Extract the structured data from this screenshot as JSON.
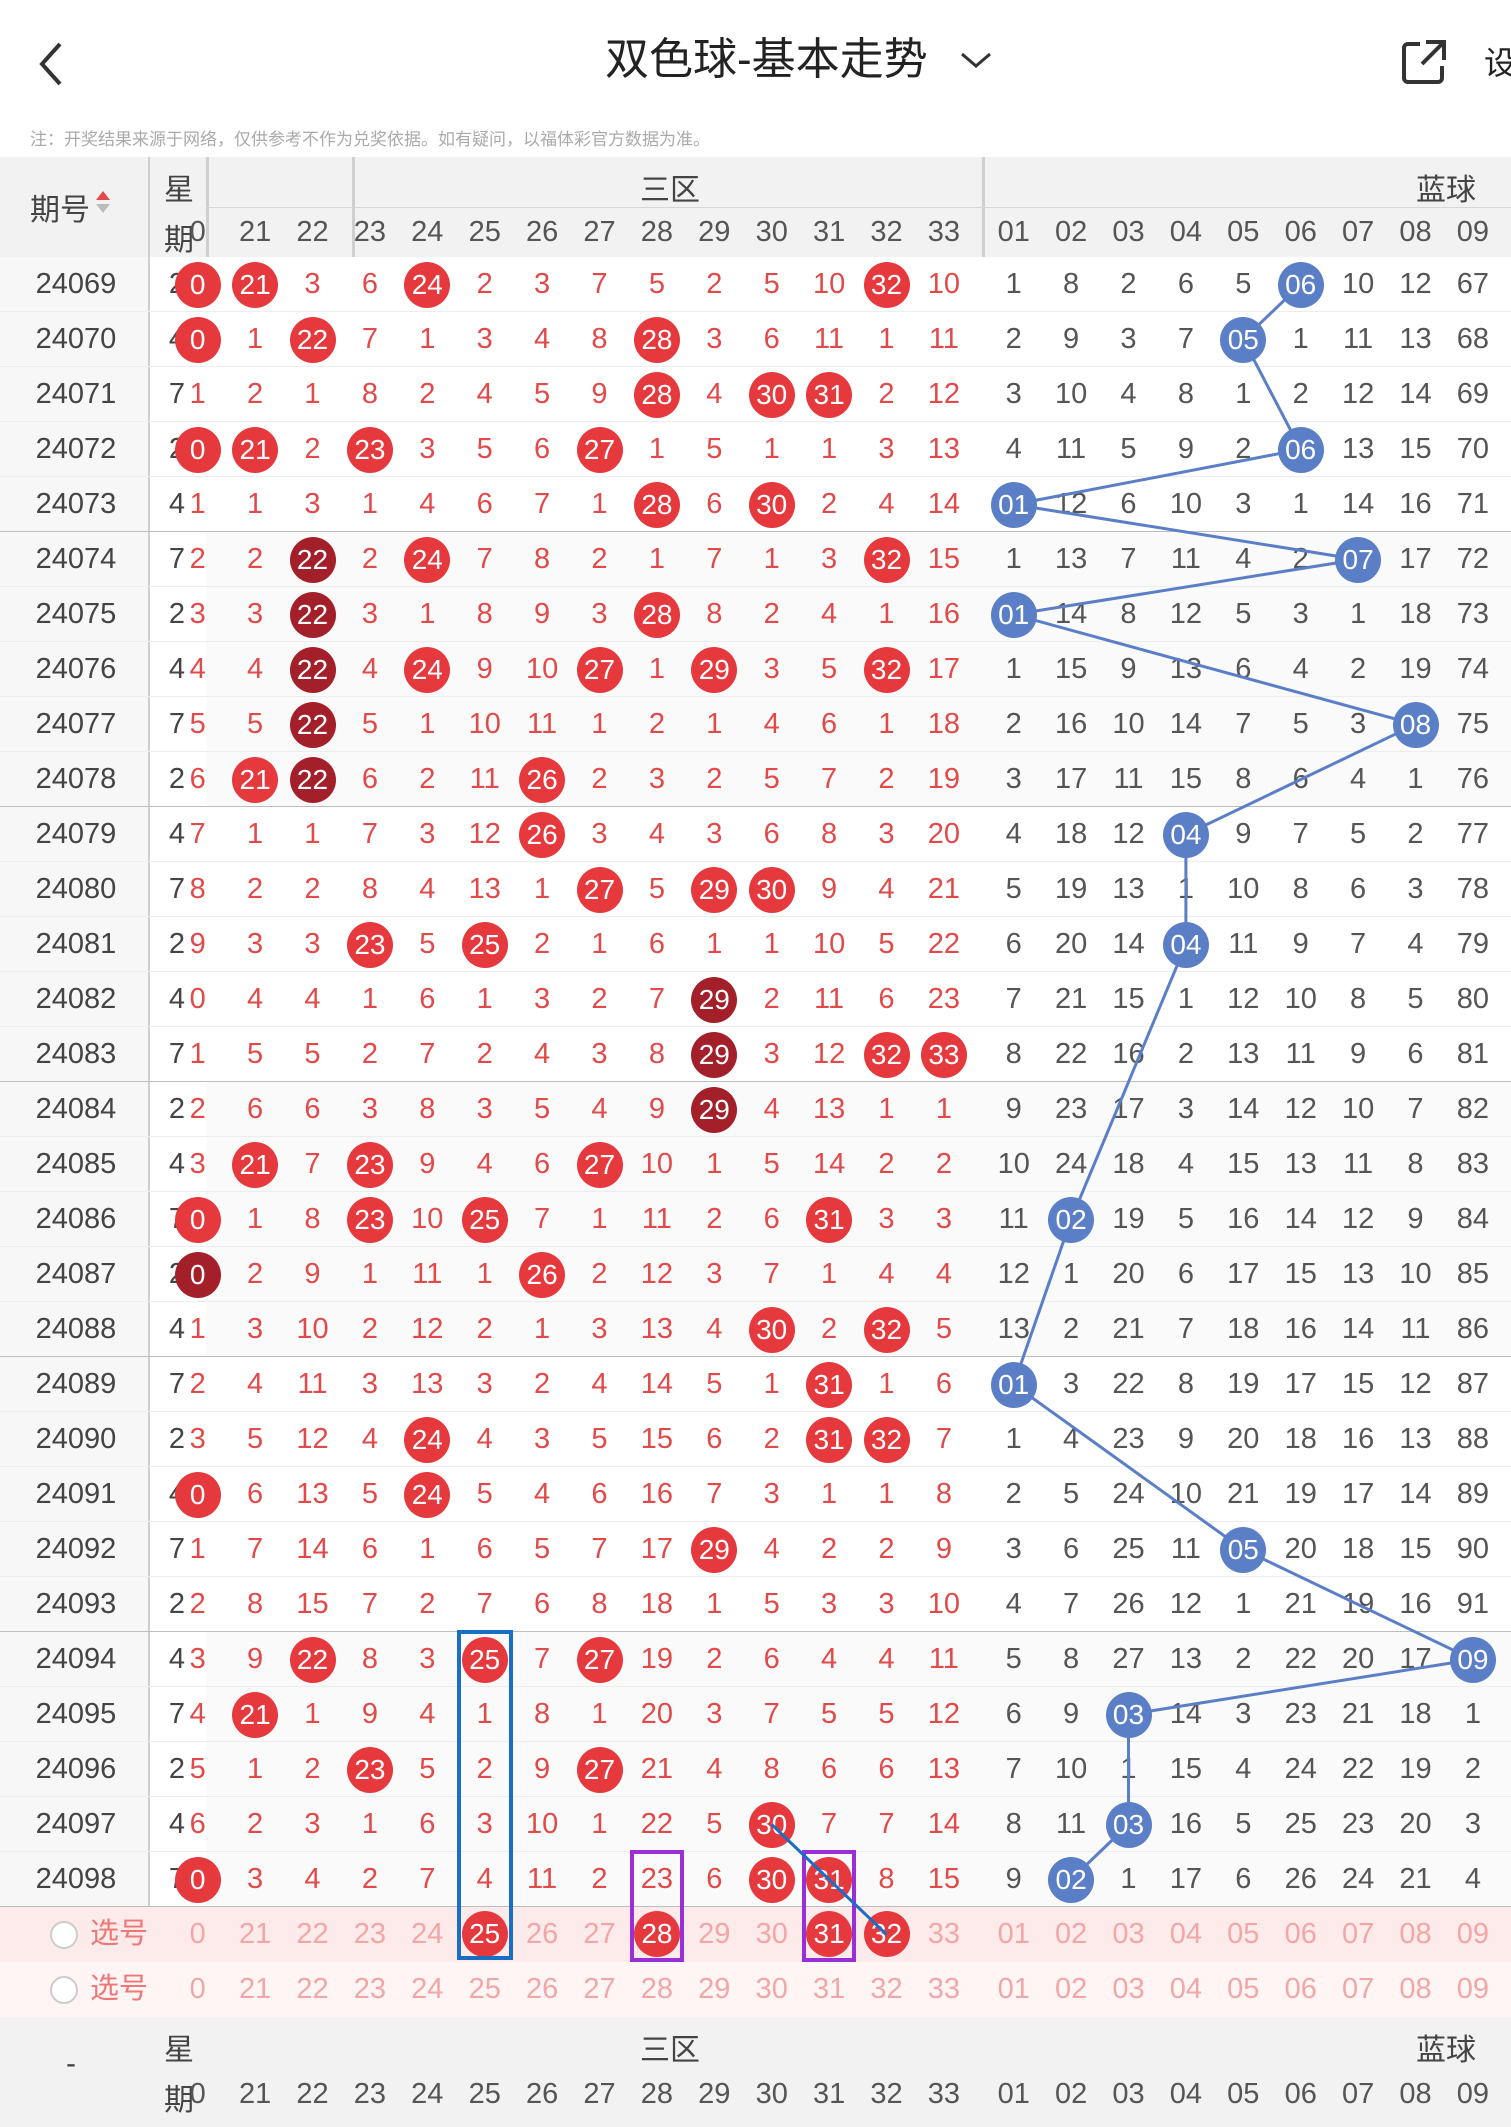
{
  "top_bar": {
    "title": "双色球-基本走势",
    "settings_label": "设",
    "notice": "注：开奖结果来源于网络，仅供参考不作为兑奖依据。如有疑问，以福体彩官方数据为准。"
  },
  "header": {
    "period_label": "期号",
    "weekday_label_top": "星",
    "weekday_label_bottom": "期",
    "zone_label": "三区",
    "blue_label": "蓝球",
    "red_columns": [
      "0",
      "21",
      "22",
      "23",
      "24",
      "25",
      "26",
      "27",
      "28",
      "29",
      "30",
      "31",
      "32",
      "33"
    ],
    "blue_columns": [
      "01",
      "02",
      "03",
      "04",
      "05",
      "06",
      "07",
      "08",
      "09"
    ]
  },
  "select_rows": [
    {
      "label": "选号"
    },
    {
      "label": "选号"
    }
  ],
  "footer": {
    "dash": "-",
    "weekday_label_top": "星",
    "weekday_label_bottom": "期",
    "zone_label": "三区",
    "blue_label": "蓝球"
  },
  "rows": [
    {
      "period": "24069",
      "weekday": "2",
      "red": [
        "0",
        "21",
        "3",
        "6",
        "24",
        "2",
        "3",
        "7",
        "5",
        "2",
        "5",
        "10",
        "32",
        "10"
      ],
      "red_hit": [
        1,
        1,
        0,
        0,
        1,
        0,
        0,
        0,
        0,
        0,
        0,
        0,
        1,
        0
      ],
      "blue": [
        "1",
        "8",
        "2",
        "6",
        "5",
        "06",
        "10",
        "12",
        "67"
      ],
      "blue_hit": 5
    },
    {
      "period": "24070",
      "weekday": "4",
      "red": [
        "0",
        "1",
        "22",
        "7",
        "1",
        "3",
        "4",
        "8",
        "28",
        "3",
        "6",
        "11",
        "1",
        "11"
      ],
      "red_hit": [
        1,
        0,
        1,
        0,
        0,
        0,
        0,
        0,
        1,
        0,
        0,
        0,
        0,
        0
      ],
      "blue": [
        "2",
        "9",
        "3",
        "7",
        "05",
        "1",
        "11",
        "13",
        "68"
      ],
      "blue_hit": 4
    },
    {
      "period": "24071",
      "weekday": "7",
      "red": [
        "1",
        "2",
        "1",
        "8",
        "2",
        "4",
        "5",
        "9",
        "28",
        "4",
        "30",
        "31",
        "2",
        "12"
      ],
      "red_hit": [
        0,
        0,
        0,
        0,
        0,
        0,
        0,
        0,
        1,
        0,
        1,
        1,
        0,
        0
      ],
      "blue": [
        "3",
        "10",
        "4",
        "8",
        "1",
        "2",
        "12",
        "14",
        "69"
      ],
      "blue_hit": -1
    },
    {
      "period": "24072",
      "weekday": "2",
      "red": [
        "0",
        "21",
        "2",
        "23",
        "3",
        "5",
        "6",
        "27",
        "1",
        "5",
        "1",
        "1",
        "3",
        "13"
      ],
      "red_hit": [
        1,
        1,
        0,
        1,
        0,
        0,
        0,
        1,
        0,
        0,
        0,
        0,
        0,
        0
      ],
      "blue": [
        "4",
        "11",
        "5",
        "9",
        "2",
        "06",
        "13",
        "15",
        "70"
      ],
      "blue_hit": 5
    },
    {
      "period": "24073",
      "weekday": "4",
      "red": [
        "1",
        "1",
        "3",
        "1",
        "4",
        "6",
        "7",
        "1",
        "28",
        "6",
        "30",
        "2",
        "4",
        "14"
      ],
      "red_hit": [
        0,
        0,
        0,
        0,
        0,
        0,
        0,
        0,
        1,
        0,
        1,
        0,
        0,
        0
      ],
      "blue": [
        "01",
        "12",
        "6",
        "10",
        "3",
        "1",
        "14",
        "16",
        "71"
      ],
      "blue_hit": 0
    },
    {
      "period": "24074",
      "weekday": "7",
      "red": [
        "2",
        "2",
        "22",
        "2",
        "24",
        "7",
        "8",
        "2",
        "1",
        "7",
        "1",
        "3",
        "32",
        "15"
      ],
      "red_hit": [
        0,
        0,
        2,
        0,
        1,
        0,
        0,
        0,
        0,
        0,
        0,
        0,
        1,
        0
      ],
      "blue": [
        "1",
        "13",
        "7",
        "11",
        "4",
        "2",
        "07",
        "17",
        "72"
      ],
      "blue_hit": 6
    },
    {
      "period": "24075",
      "weekday": "2",
      "red": [
        "3",
        "3",
        "22",
        "3",
        "1",
        "8",
        "9",
        "3",
        "28",
        "8",
        "2",
        "4",
        "1",
        "16"
      ],
      "red_hit": [
        0,
        0,
        2,
        0,
        0,
        0,
        0,
        0,
        1,
        0,
        0,
        0,
        0,
        0
      ],
      "blue": [
        "01",
        "14",
        "8",
        "12",
        "5",
        "3",
        "1",
        "18",
        "73"
      ],
      "blue_hit": 0
    },
    {
      "period": "24076",
      "weekday": "4",
      "red": [
        "4",
        "4",
        "22",
        "4",
        "24",
        "9",
        "10",
        "27",
        "1",
        "29",
        "3",
        "5",
        "32",
        "17"
      ],
      "red_hit": [
        0,
        0,
        2,
        0,
        1,
        0,
        0,
        1,
        0,
        1,
        0,
        0,
        1,
        0
      ],
      "blue": [
        "1",
        "15",
        "9",
        "13",
        "6",
        "4",
        "2",
        "19",
        "74"
      ],
      "blue_hit": -1
    },
    {
      "period": "24077",
      "weekday": "7",
      "red": [
        "5",
        "5",
        "22",
        "5",
        "1",
        "10",
        "11",
        "1",
        "2",
        "1",
        "4",
        "6",
        "1",
        "18"
      ],
      "red_hit": [
        0,
        0,
        2,
        0,
        0,
        0,
        0,
        0,
        0,
        0,
        0,
        0,
        0,
        0
      ],
      "blue": [
        "2",
        "16",
        "10",
        "14",
        "7",
        "5",
        "3",
        "08",
        "75"
      ],
      "blue_hit": 7
    },
    {
      "period": "24078",
      "weekday": "2",
      "red": [
        "6",
        "21",
        "22",
        "6",
        "2",
        "11",
        "26",
        "2",
        "3",
        "2",
        "5",
        "7",
        "2",
        "19"
      ],
      "red_hit": [
        0,
        1,
        2,
        0,
        0,
        0,
        1,
        0,
        0,
        0,
        0,
        0,
        0,
        0
      ],
      "blue": [
        "3",
        "17",
        "11",
        "15",
        "8",
        "6",
        "4",
        "1",
        "76"
      ],
      "blue_hit": -1
    },
    {
      "period": "24079",
      "weekday": "4",
      "red": [
        "7",
        "1",
        "1",
        "7",
        "3",
        "12",
        "26",
        "3",
        "4",
        "3",
        "6",
        "8",
        "3",
        "20"
      ],
      "red_hit": [
        0,
        0,
        0,
        0,
        0,
        0,
        1,
        0,
        0,
        0,
        0,
        0,
        0,
        0
      ],
      "blue": [
        "4",
        "18",
        "12",
        "04",
        "9",
        "7",
        "5",
        "2",
        "77"
      ],
      "blue_hit": 3
    },
    {
      "period": "24080",
      "weekday": "7",
      "red": [
        "8",
        "2",
        "2",
        "8",
        "4",
        "13",
        "1",
        "27",
        "5",
        "29",
        "30",
        "9",
        "4",
        "21"
      ],
      "red_hit": [
        0,
        0,
        0,
        0,
        0,
        0,
        0,
        1,
        0,
        1,
        1,
        0,
        0,
        0
      ],
      "blue": [
        "5",
        "19",
        "13",
        "1",
        "10",
        "8",
        "6",
        "3",
        "78"
      ],
      "blue_hit": -1
    },
    {
      "period": "24081",
      "weekday": "2",
      "red": [
        "9",
        "3",
        "3",
        "23",
        "5",
        "25",
        "2",
        "1",
        "6",
        "1",
        "1",
        "10",
        "5",
        "22"
      ],
      "red_hit": [
        0,
        0,
        0,
        1,
        0,
        1,
        0,
        0,
        0,
        0,
        0,
        0,
        0,
        0
      ],
      "blue": [
        "6",
        "20",
        "14",
        "04",
        "11",
        "9",
        "7",
        "4",
        "79"
      ],
      "blue_hit": 3
    },
    {
      "period": "24082",
      "weekday": "4",
      "red": [
        "0",
        "4",
        "4",
        "1",
        "6",
        "1",
        "3",
        "2",
        "7",
        "29",
        "2",
        "11",
        "6",
        "23"
      ],
      "red_hit": [
        0,
        0,
        0,
        0,
        0,
        0,
        0,
        0,
        0,
        2,
        0,
        0,
        0,
        0
      ],
      "blue": [
        "7",
        "21",
        "15",
        "1",
        "12",
        "10",
        "8",
        "5",
        "80"
      ],
      "blue_hit": -1
    },
    {
      "period": "24083",
      "weekday": "7",
      "red": [
        "1",
        "5",
        "5",
        "2",
        "7",
        "2",
        "4",
        "3",
        "8",
        "29",
        "3",
        "12",
        "32",
        "33"
      ],
      "red_hit": [
        0,
        0,
        0,
        0,
        0,
        0,
        0,
        0,
        0,
        2,
        0,
        0,
        1,
        1
      ],
      "blue": [
        "8",
        "22",
        "16",
        "2",
        "13",
        "11",
        "9",
        "6",
        "81"
      ],
      "blue_hit": -1
    },
    {
      "period": "24084",
      "weekday": "2",
      "red": [
        "2",
        "6",
        "6",
        "3",
        "8",
        "3",
        "5",
        "4",
        "9",
        "29",
        "4",
        "13",
        "1",
        "1"
      ],
      "red_hit": [
        0,
        0,
        0,
        0,
        0,
        0,
        0,
        0,
        0,
        2,
        0,
        0,
        0,
        0
      ],
      "blue": [
        "9",
        "23",
        "17",
        "3",
        "14",
        "12",
        "10",
        "7",
        "82"
      ],
      "blue_hit": -1
    },
    {
      "period": "24085",
      "weekday": "4",
      "red": [
        "3",
        "21",
        "7",
        "23",
        "9",
        "4",
        "6",
        "27",
        "10",
        "1",
        "5",
        "14",
        "2",
        "2"
      ],
      "red_hit": [
        0,
        1,
        0,
        1,
        0,
        0,
        0,
        1,
        0,
        0,
        0,
        0,
        0,
        0
      ],
      "blue": [
        "10",
        "24",
        "18",
        "4",
        "15",
        "13",
        "11",
        "8",
        "83"
      ],
      "blue_hit": -1
    },
    {
      "period": "24086",
      "weekday": "7",
      "red": [
        "0",
        "1",
        "8",
        "23",
        "10",
        "25",
        "7",
        "1",
        "11",
        "2",
        "6",
        "31",
        "3",
        "3"
      ],
      "red_hit": [
        1,
        0,
        0,
        1,
        0,
        1,
        0,
        0,
        0,
        0,
        0,
        1,
        0,
        0
      ],
      "blue": [
        "11",
        "02",
        "19",
        "5",
        "16",
        "14",
        "12",
        "9",
        "84"
      ],
      "blue_hit": 1
    },
    {
      "period": "24087",
      "weekday": "2",
      "red": [
        "0",
        "2",
        "9",
        "1",
        "11",
        "1",
        "26",
        "2",
        "12",
        "3",
        "7",
        "1",
        "4",
        "4"
      ],
      "red_hit": [
        2,
        0,
        0,
        0,
        0,
        0,
        1,
        0,
        0,
        0,
        0,
        0,
        0,
        0
      ],
      "blue": [
        "12",
        "1",
        "20",
        "6",
        "17",
        "15",
        "13",
        "10",
        "85"
      ],
      "blue_hit": -1
    },
    {
      "period": "24088",
      "weekday": "4",
      "red": [
        "1",
        "3",
        "10",
        "2",
        "12",
        "2",
        "1",
        "3",
        "13",
        "4",
        "30",
        "2",
        "32",
        "5"
      ],
      "red_hit": [
        0,
        0,
        0,
        0,
        0,
        0,
        0,
        0,
        0,
        0,
        1,
        0,
        1,
        0
      ],
      "blue": [
        "13",
        "2",
        "21",
        "7",
        "18",
        "16",
        "14",
        "11",
        "86"
      ],
      "blue_hit": -1
    },
    {
      "period": "24089",
      "weekday": "7",
      "red": [
        "2",
        "4",
        "11",
        "3",
        "13",
        "3",
        "2",
        "4",
        "14",
        "5",
        "1",
        "31",
        "1",
        "6"
      ],
      "red_hit": [
        0,
        0,
        0,
        0,
        0,
        0,
        0,
        0,
        0,
        0,
        0,
        1,
        0,
        0
      ],
      "blue": [
        "01",
        "3",
        "22",
        "8",
        "19",
        "17",
        "15",
        "12",
        "87"
      ],
      "blue_hit": 0
    },
    {
      "period": "24090",
      "weekday": "2",
      "red": [
        "3",
        "5",
        "12",
        "4",
        "24",
        "4",
        "3",
        "5",
        "15",
        "6",
        "2",
        "31",
        "32",
        "7"
      ],
      "red_hit": [
        0,
        0,
        0,
        0,
        1,
        0,
        0,
        0,
        0,
        0,
        0,
        1,
        1,
        0
      ],
      "blue": [
        "1",
        "4",
        "23",
        "9",
        "20",
        "18",
        "16",
        "13",
        "88"
      ],
      "blue_hit": -1
    },
    {
      "period": "24091",
      "weekday": "4",
      "red": [
        "0",
        "6",
        "13",
        "5",
        "24",
        "5",
        "4",
        "6",
        "16",
        "7",
        "3",
        "1",
        "1",
        "8"
      ],
      "red_hit": [
        1,
        0,
        0,
        0,
        1,
        0,
        0,
        0,
        0,
        0,
        0,
        0,
        0,
        0
      ],
      "blue": [
        "2",
        "5",
        "24",
        "10",
        "21",
        "19",
        "17",
        "14",
        "89"
      ],
      "blue_hit": -1
    },
    {
      "period": "24092",
      "weekday": "7",
      "red": [
        "1",
        "7",
        "14",
        "6",
        "1",
        "6",
        "5",
        "7",
        "17",
        "29",
        "4",
        "2",
        "2",
        "9"
      ],
      "red_hit": [
        0,
        0,
        0,
        0,
        0,
        0,
        0,
        0,
        0,
        1,
        0,
        0,
        0,
        0
      ],
      "blue": [
        "3",
        "6",
        "25",
        "11",
        "05",
        "20",
        "18",
        "15",
        "90"
      ],
      "blue_hit": 4
    },
    {
      "period": "24093",
      "weekday": "2",
      "red": [
        "2",
        "8",
        "15",
        "7",
        "2",
        "7",
        "6",
        "8",
        "18",
        "1",
        "5",
        "3",
        "3",
        "10"
      ],
      "red_hit": [
        0,
        0,
        0,
        0,
        0,
        0,
        0,
        0,
        0,
        0,
        0,
        0,
        0,
        0
      ],
      "blue": [
        "4",
        "7",
        "26",
        "12",
        "1",
        "21",
        "19",
        "16",
        "91"
      ],
      "blue_hit": -1
    },
    {
      "period": "24094",
      "weekday": "4",
      "red": [
        "3",
        "9",
        "22",
        "8",
        "3",
        "25",
        "7",
        "27",
        "19",
        "2",
        "6",
        "4",
        "4",
        "11"
      ],
      "red_hit": [
        0,
        0,
        1,
        0,
        0,
        1,
        0,
        1,
        0,
        0,
        0,
        0,
        0,
        0
      ],
      "blue": [
        "5",
        "8",
        "27",
        "13",
        "2",
        "22",
        "20",
        "17",
        "09"
      ],
      "blue_hit": 8
    },
    {
      "period": "24095",
      "weekday": "7",
      "red": [
        "4",
        "21",
        "1",
        "9",
        "4",
        "1",
        "8",
        "1",
        "20",
        "3",
        "7",
        "5",
        "5",
        "12"
      ],
      "red_hit": [
        0,
        1,
        0,
        0,
        0,
        0,
        0,
        0,
        0,
        0,
        0,
        0,
        0,
        0
      ],
      "blue": [
        "6",
        "9",
        "03",
        "14",
        "3",
        "23",
        "21",
        "18",
        "1"
      ],
      "blue_hit": 2
    },
    {
      "period": "24096",
      "weekday": "2",
      "red": [
        "5",
        "1",
        "2",
        "23",
        "5",
        "2",
        "9",
        "27",
        "21",
        "4",
        "8",
        "6",
        "6",
        "13"
      ],
      "red_hit": [
        0,
        0,
        0,
        1,
        0,
        0,
        0,
        1,
        0,
        0,
        0,
        0,
        0,
        0
      ],
      "blue": [
        "7",
        "10",
        "1",
        "15",
        "4",
        "24",
        "22",
        "19",
        "2"
      ],
      "blue_hit": -1
    },
    {
      "period": "24097",
      "weekday": "4",
      "red": [
        "6",
        "2",
        "3",
        "1",
        "6",
        "3",
        "10",
        "1",
        "22",
        "5",
        "30",
        "7",
        "7",
        "14"
      ],
      "red_hit": [
        0,
        0,
        0,
        0,
        0,
        0,
        0,
        0,
        0,
        0,
        1,
        0,
        0,
        0
      ],
      "blue": [
        "8",
        "11",
        "03",
        "16",
        "5",
        "25",
        "23",
        "20",
        "3"
      ],
      "blue_hit": 2
    },
    {
      "period": "24098",
      "weekday": "7",
      "red": [
        "0",
        "3",
        "4",
        "2",
        "7",
        "4",
        "11",
        "2",
        "23",
        "6",
        "30",
        "31",
        "8",
        "15"
      ],
      "red_hit": [
        1,
        0,
        0,
        0,
        0,
        0,
        0,
        0,
        0,
        0,
        1,
        1,
        0,
        0
      ],
      "blue": [
        "9",
        "02",
        "1",
        "17",
        "6",
        "26",
        "24",
        "21",
        "4"
      ],
      "blue_hit": 1
    }
  ],
  "select_picks": [
    {
      "red": [
        5,
        8,
        11,
        12
      ]
    }
  ],
  "colors": {
    "red_ball": "#e6393d",
    "dark_ball": "#a3202a",
    "blue_ball": "#5b7fc7",
    "blue_box": "#1a6fc4",
    "purple_box": "#9a2fd6",
    "line_blue": "#5b7fc7"
  }
}
